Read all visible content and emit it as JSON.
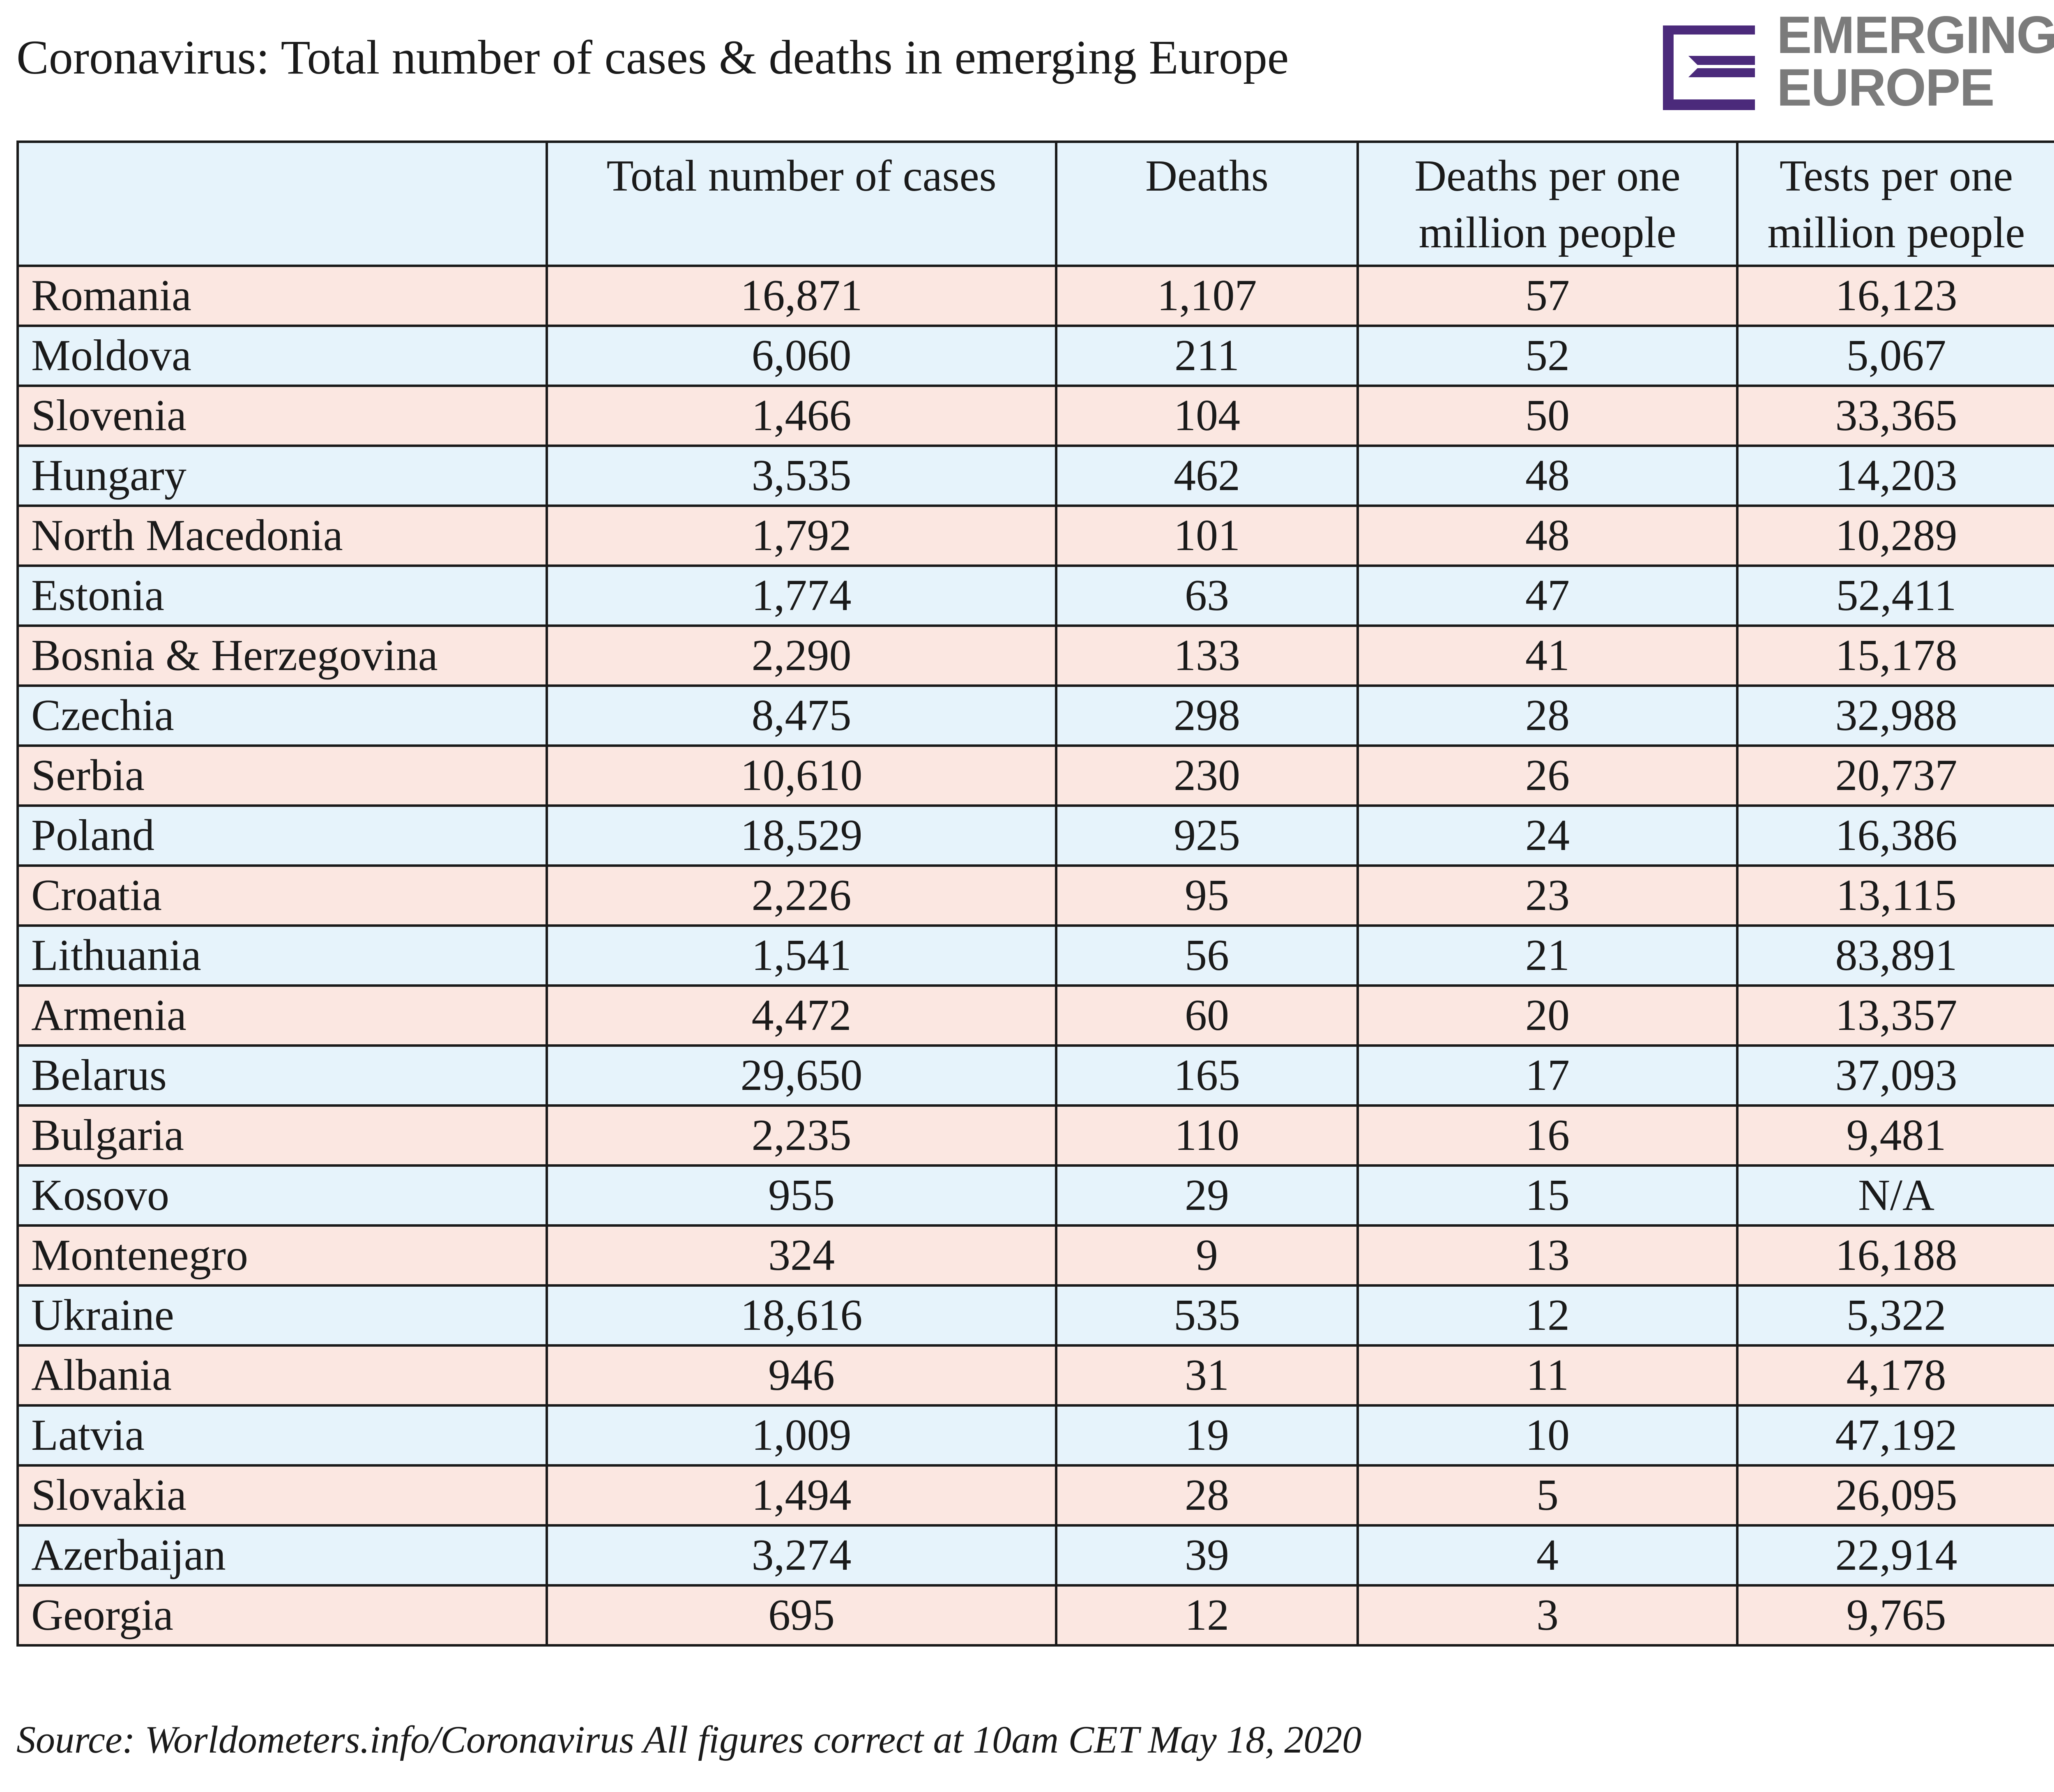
{
  "title": "Coronavirus: Total number of cases & deaths in emerging Europe",
  "logo": {
    "line1": "EMERGING",
    "line2": "EUROPE",
    "mark_color": "#4b2a7b",
    "text_color": "#7b7b7b"
  },
  "table": {
    "headers": [
      "",
      "Total number of cases",
      "Deaths",
      "Deaths per one million people",
      "Tests per one million people"
    ],
    "rows": [
      [
        "Romania",
        "16,871",
        "1,107",
        "57",
        "16,123"
      ],
      [
        "Moldova",
        "6,060",
        "211",
        "52",
        "5,067"
      ],
      [
        "Slovenia",
        "1,466",
        "104",
        "50",
        "33,365"
      ],
      [
        "Hungary",
        "3,535",
        "462",
        "48",
        "14,203"
      ],
      [
        "North Macedonia",
        "1,792",
        "101",
        "48",
        "10,289"
      ],
      [
        "Estonia",
        "1,774",
        "63",
        "47",
        "52,411"
      ],
      [
        "Bosnia & Herzegovina",
        "2,290",
        "133",
        "41",
        "15,178"
      ],
      [
        "Czechia",
        "8,475",
        "298",
        "28",
        "32,988"
      ],
      [
        "Serbia",
        "10,610",
        "230",
        "26",
        "20,737"
      ],
      [
        "Poland",
        "18,529",
        "925",
        "24",
        "16,386"
      ],
      [
        "Croatia",
        "2,226",
        "95",
        "23",
        "13,115"
      ],
      [
        "Lithuania",
        "1,541",
        "56",
        "21",
        "83,891"
      ],
      [
        "Armenia",
        "4,472",
        "60",
        "20",
        "13,357"
      ],
      [
        "Belarus",
        "29,650",
        "165",
        "17",
        "37,093"
      ],
      [
        "Bulgaria",
        "2,235",
        "110",
        "16",
        "9,481"
      ],
      [
        "Kosovo",
        "955",
        "29",
        "15",
        "N/A"
      ],
      [
        "Montenegro",
        "324",
        "9",
        "13",
        "16,188"
      ],
      [
        "Ukraine",
        "18,616",
        "535",
        "12",
        "5,322"
      ],
      [
        "Albania",
        "946",
        "31",
        "11",
        "4,178"
      ],
      [
        "Latvia",
        "1,009",
        "19",
        "10",
        "47,192"
      ],
      [
        "Slovakia",
        "1,494",
        "28",
        "5",
        "26,095"
      ],
      [
        "Azerbaijan",
        "3,274",
        "39",
        "4",
        "22,914"
      ],
      [
        "Georgia",
        "695",
        "12",
        "3",
        "9,765"
      ]
    ]
  },
  "colors": {
    "header_bg": "#e6f3fb",
    "row_pink": "#fbe7e1",
    "row_blue": "#e6f3fb",
    "border": "#1a1a1a"
  },
  "source": "Source: Worldometers.info/Coronavirus All figures correct at 10am CET May 18, 2020"
}
